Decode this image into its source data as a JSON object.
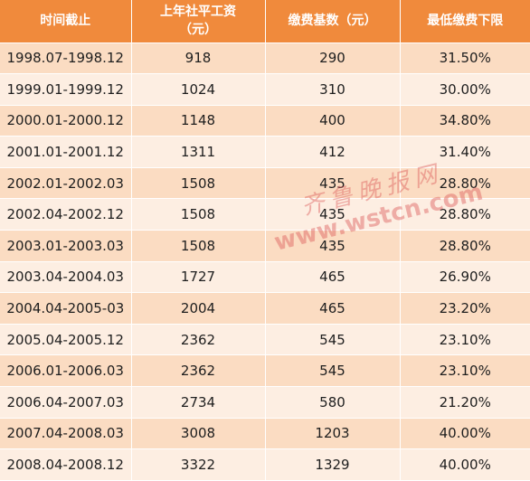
{
  "table": {
    "headers": [
      {
        "line1": "时间截止",
        "line2": ""
      },
      {
        "line1": "上年社平工资",
        "line2": "（元）"
      },
      {
        "line1": "缴费基数（元）",
        "line2": ""
      },
      {
        "line1": "最低缴费下限",
        "line2": ""
      }
    ],
    "rows": [
      [
        "1998.07-1998.12",
        "918",
        "290",
        "31.50%"
      ],
      [
        "1999.01-1999.12",
        "1024",
        "310",
        "30.00%"
      ],
      [
        "2000.01-2000.12",
        "1148",
        "400",
        "34.80%"
      ],
      [
        "2001.01-2001.12",
        "1311",
        "412",
        "31.40%"
      ],
      [
        "2002.01-2002.03",
        "1508",
        "435",
        "28.80%"
      ],
      [
        "2002.04-2002.12",
        "1508",
        "435",
        "28.80%"
      ],
      [
        "2003.01-2003.03",
        "1508",
        "435",
        "28.80%"
      ],
      [
        "2003.04-2004.03",
        "1727",
        "465",
        "26.90%"
      ],
      [
        "2004.04-2005-03",
        "2004",
        "465",
        "23.20%"
      ],
      [
        "2005.04-2005.12",
        "2362",
        "545",
        "23.10%"
      ],
      [
        "2006.01-2006.03",
        "2362",
        "545",
        "23.10%"
      ],
      [
        "2006.04-2007.03",
        "2734",
        "580",
        "21.20%"
      ],
      [
        "2007.04-2008.03",
        "3008",
        "1203",
        "40.00%"
      ],
      [
        "2008.04-2008.12",
        "3322",
        "1329",
        "40.00%"
      ]
    ]
  },
  "watermark": {
    "text_cn": "齐鲁晚报网",
    "url": "www.wstcn.com"
  },
  "colors": {
    "header_bg": "#f08a3c",
    "row_dark": "#fbdcc2",
    "row_light": "#fdeee2",
    "watermark": "#dc5a5a"
  }
}
